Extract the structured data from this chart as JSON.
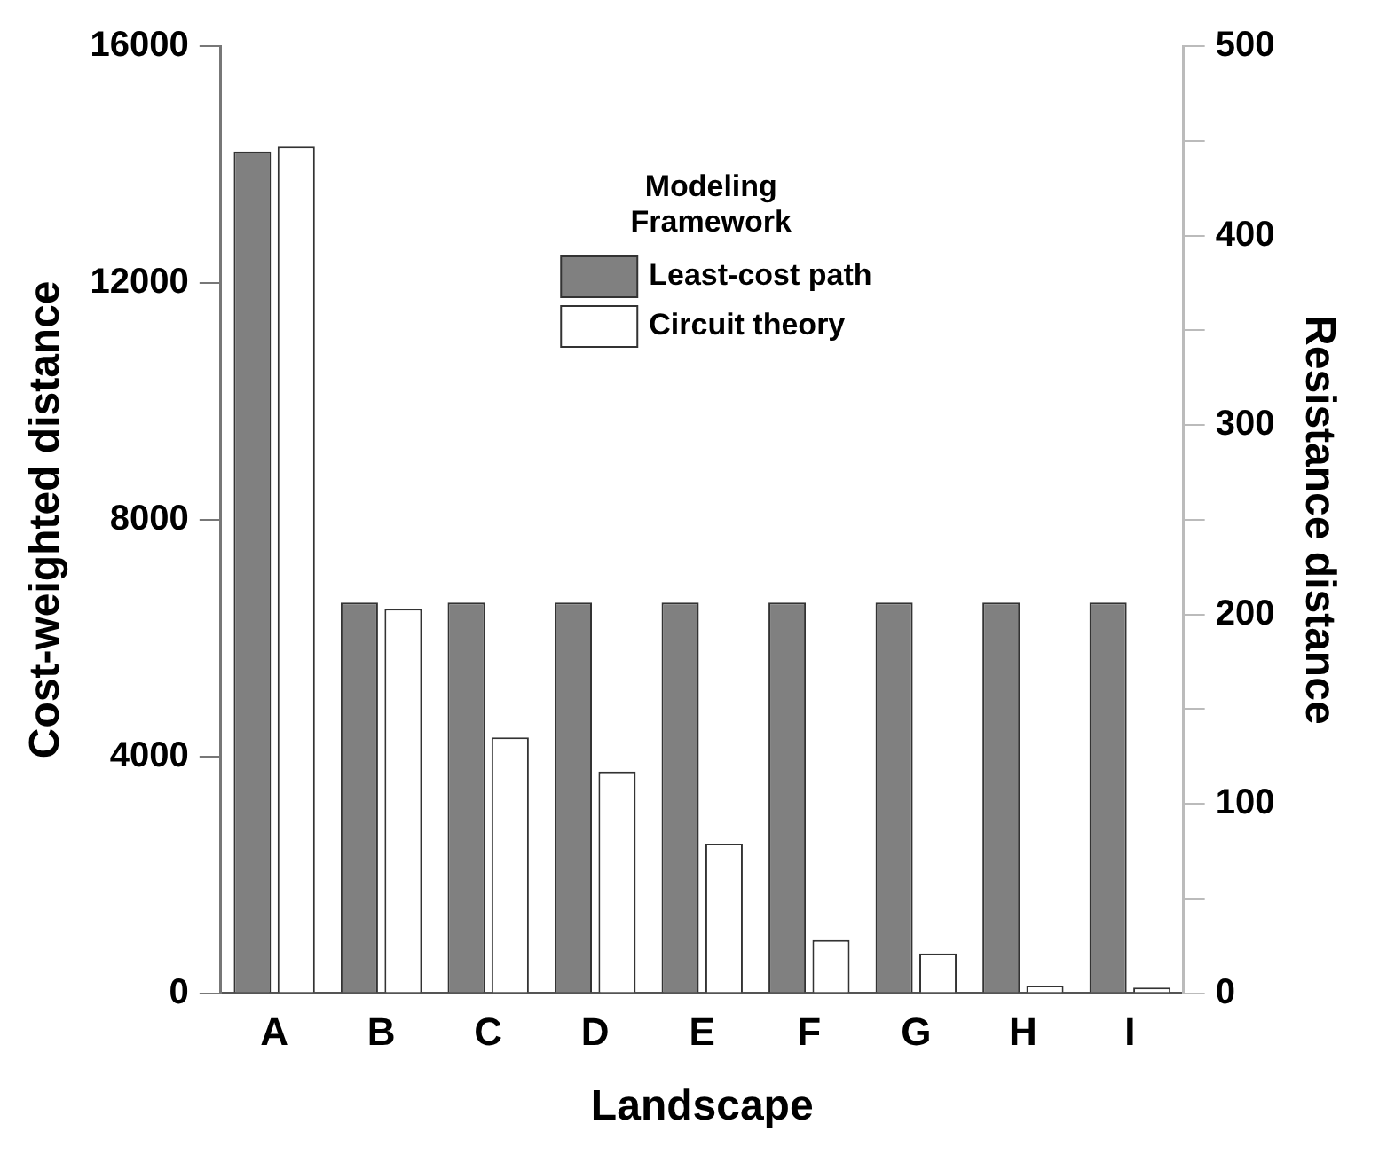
{
  "chart_data": {
    "type": "bar",
    "xlabel": "Landscape",
    "ylabel": "Cost-weighted distance",
    "y2label": "Resistance distance",
    "legend_title": "Modeling Framework",
    "legend": "top",
    "categories": [
      "A",
      "B",
      "C",
      "D",
      "E",
      "F",
      "G",
      "H",
      "I"
    ],
    "series": [
      {
        "name": "Least-cost path",
        "color": "#808080",
        "values": [
          14220,
          6600,
          6600,
          6600,
          6600,
          6600,
          6600,
          6600,
          6600
        ]
      },
      {
        "name": "Circuit theory",
        "color": "#ffffff",
        "axis": "y2",
        "values": [
          447,
          203,
          135,
          117,
          79,
          28,
          21,
          4,
          3
        ]
      }
    ],
    "ylim": [
      0,
      16000
    ],
    "yticks": [
      0,
      4000,
      8000,
      12000,
      16000
    ],
    "y2lim": [
      0,
      500
    ],
    "y2ticks": [
      0,
      {
        "value": 50,
        "label": null
      },
      100,
      {
        "value": 150,
        "label": null
      },
      200,
      {
        "value": 250,
        "label": null
      },
      300,
      {
        "value": 350,
        "label": null
      },
      400,
      {
        "value": 450,
        "label": null
      },
      500
    ],
    "grid": false
  }
}
